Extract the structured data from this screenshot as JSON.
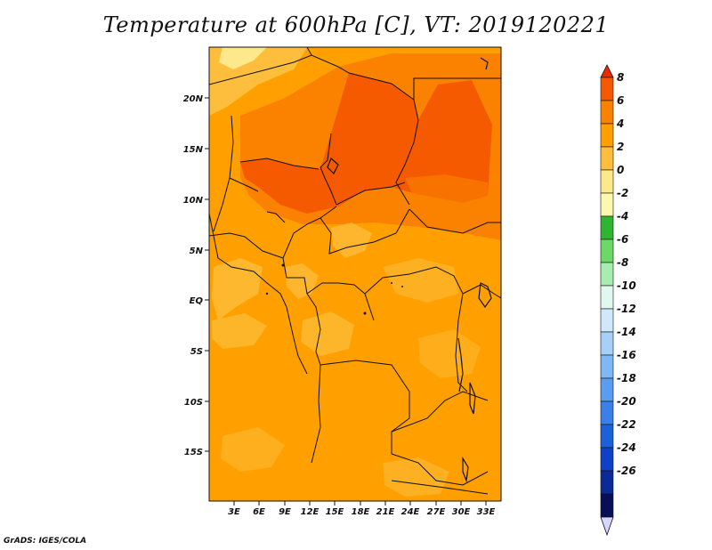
{
  "title": "Temperature at 600hPa [C], VT: 2019120221",
  "credit": "GrADS: IGES/COLA",
  "map": {
    "lat_ticks": [
      "20N",
      "15N",
      "10N",
      "5N",
      "EQ",
      "5S",
      "10S",
      "15S"
    ],
    "lon_ticks": [
      "3E",
      "6E",
      "9E",
      "12E",
      "15E",
      "18E",
      "21E",
      "24E",
      "27E",
      "30E",
      "33E"
    ],
    "region": "Central and West-Central Africa",
    "temperature_field": {
      "north_core_max_C": 7,
      "background_C": 3,
      "south_C": 3
    }
  },
  "colorbar": {
    "labels": [
      "8",
      "6",
      "4",
      "2",
      "0",
      "-2",
      "-4",
      "-6",
      "-8",
      "-10",
      "-12",
      "-14",
      "-16",
      "-18",
      "-20",
      "-22",
      "-24",
      "-26"
    ],
    "colors": [
      "#f02800",
      "#f55a00",
      "#fa8200",
      "#ffa000",
      "#fcbe3c",
      "#fde98c",
      "#fdf8b0",
      "#2fb52f",
      "#6bd868",
      "#a8ecb0",
      "#e0f8f0",
      "#cfe8fc",
      "#a6d0f8",
      "#7fb8f4",
      "#5a9cf0",
      "#3a80e8",
      "#1c60da",
      "#0f40c8",
      "#0a2a98",
      "#060f58",
      "#d6d6ff"
    ]
  }
}
